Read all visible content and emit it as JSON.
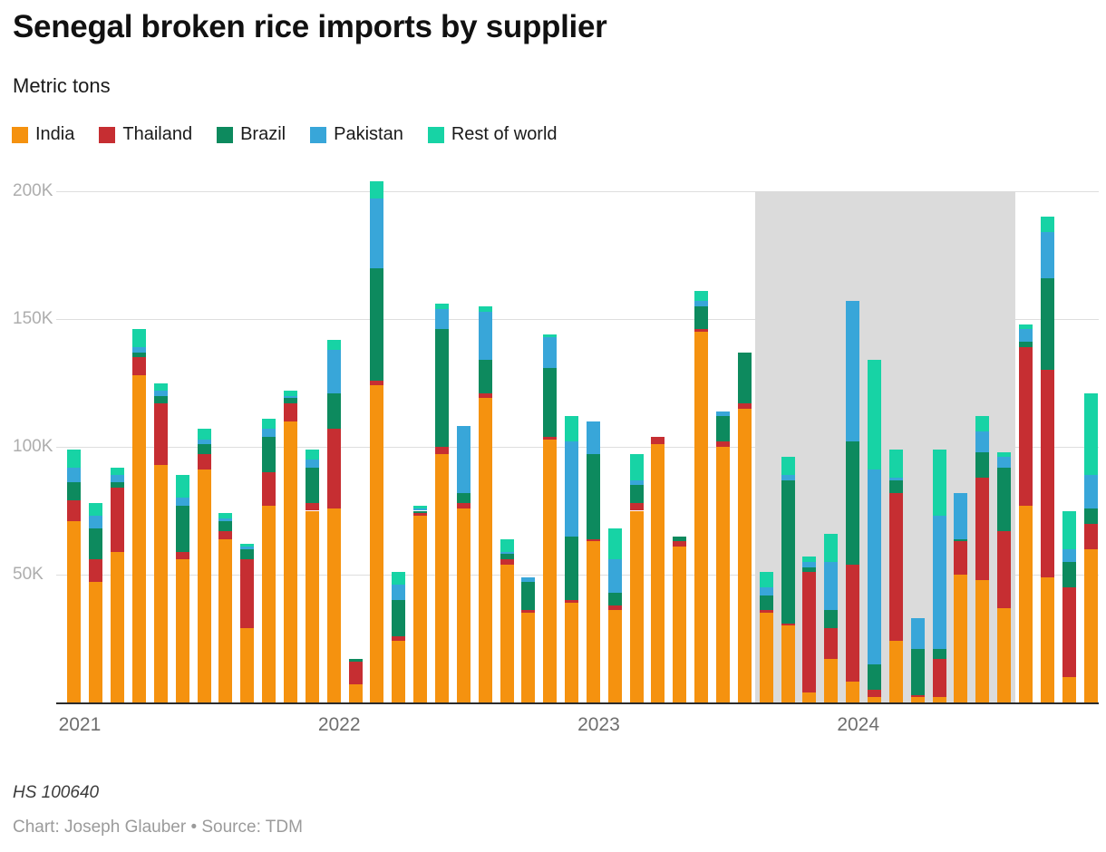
{
  "header": {
    "title": "Senegal broken rice imports by supplier",
    "subtitle": "Metric tons"
  },
  "footer": {
    "note": "HS 100640",
    "credit": "Chart: Joseph Glauber • Source: TDM"
  },
  "chart_data": {
    "type": "bar",
    "stacked": true,
    "title": "Senegal broken rice imports by supplier",
    "ylabel": "Metric tons",
    "unit": "thousand metric tons",
    "grid": "horizontal",
    "legend_position": "top",
    "ylim": [
      0,
      204
    ],
    "x": [
      "2021-01",
      "2021-02",
      "2021-03",
      "2021-04",
      "2021-05",
      "2021-06",
      "2021-07",
      "2021-08",
      "2021-09",
      "2021-10",
      "2021-11",
      "2021-12",
      "2022-01",
      "2022-02",
      "2022-03",
      "2022-04",
      "2022-05",
      "2022-06",
      "2022-07",
      "2022-08",
      "2022-09",
      "2022-10",
      "2022-11",
      "2022-12",
      "2023-01",
      "2023-02",
      "2023-03",
      "2023-04",
      "2023-05",
      "2023-06",
      "2023-07",
      "2023-08",
      "2023-09",
      "2023-10",
      "2023-11",
      "2023-12",
      "2024-01",
      "2024-02",
      "2024-03",
      "2024-04",
      "2024-05",
      "2024-06",
      "2024-07",
      "2024-08",
      "2024-09",
      "2024-10",
      "2024-11",
      "2024-12"
    ],
    "series": [
      {
        "name": "India",
        "color": "#f5920f",
        "values": [
          71,
          47,
          59,
          128,
          93,
          56,
          91,
          64,
          29,
          77,
          110,
          75,
          76,
          7,
          124,
          24,
          73,
          97,
          76,
          119,
          54,
          35,
          103,
          39,
          63,
          36,
          75,
          101,
          61,
          145,
          100,
          115,
          35,
          30,
          4,
          17,
          8,
          2,
          24,
          2,
          2,
          50,
          48,
          37,
          77,
          49,
          10,
          60
        ]
      },
      {
        "name": "Thailand",
        "color": "#c62e32",
        "values": [
          8,
          9,
          25,
          7,
          24,
          3,
          6,
          3,
          27,
          13,
          7,
          3,
          31,
          9,
          2,
          2,
          1,
          3,
          2,
          2,
          2,
          1,
          1,
          1,
          1,
          2,
          3,
          3,
          2,
          1,
          2,
          2,
          1,
          1,
          47,
          12,
          46,
          3,
          58,
          1,
          15,
          13,
          40,
          30,
          62,
          81,
          35,
          10
        ]
      },
      {
        "name": "Brazil",
        "color": "#0d8a5e",
        "values": [
          7,
          12,
          2,
          2,
          3,
          18,
          4,
          4,
          4,
          14,
          2,
          14,
          14,
          1,
          44,
          14,
          1,
          46,
          4,
          13,
          2,
          11,
          27,
          25,
          33,
          5,
          7,
          0,
          2,
          9,
          10,
          20,
          6,
          56,
          2,
          7,
          48,
          10,
          5,
          18,
          4,
          1,
          10,
          25,
          2,
          36,
          10,
          6
        ]
      },
      {
        "name": "Pakistan",
        "color": "#38a6d9",
        "values": [
          6,
          5,
          3,
          2,
          2,
          3,
          2,
          1,
          1,
          3,
          1,
          3,
          17,
          0,
          27,
          6,
          1,
          8,
          26,
          19,
          1,
          2,
          12,
          37,
          13,
          13,
          2,
          0,
          0,
          2,
          2,
          0,
          3,
          2,
          2,
          19,
          55,
          76,
          1,
          12,
          52,
          18,
          8,
          4,
          5,
          18,
          5,
          13
        ]
      },
      {
        "name": "Rest of world",
        "color": "#17d3a5",
        "values": [
          7,
          5,
          3,
          7,
          3,
          9,
          4,
          2,
          1,
          4,
          2,
          4,
          4,
          0,
          7,
          5,
          1,
          2,
          0,
          2,
          5,
          0,
          1,
          10,
          0,
          12,
          10,
          0,
          0,
          4,
          0,
          0,
          6,
          7,
          2,
          11,
          0,
          43,
          11,
          0,
          26,
          0,
          6,
          2,
          2,
          6,
          15,
          32
        ]
      }
    ],
    "y_ticks": [
      {
        "value": 50,
        "label": "50K"
      },
      {
        "value": 100,
        "label": "100K"
      },
      {
        "value": 150,
        "label": "150K"
      },
      {
        "value": 200,
        "label": "200K"
      }
    ],
    "x_ticks": [
      {
        "index": 0,
        "label": "2021"
      },
      {
        "index": 12,
        "label": "2022"
      },
      {
        "index": 24,
        "label": "2023"
      },
      {
        "index": 36,
        "label": "2024"
      }
    ],
    "highlight_band": {
      "start_index": 32,
      "end_index": 43,
      "top_value": 200,
      "color": "#dbdbdb"
    }
  }
}
